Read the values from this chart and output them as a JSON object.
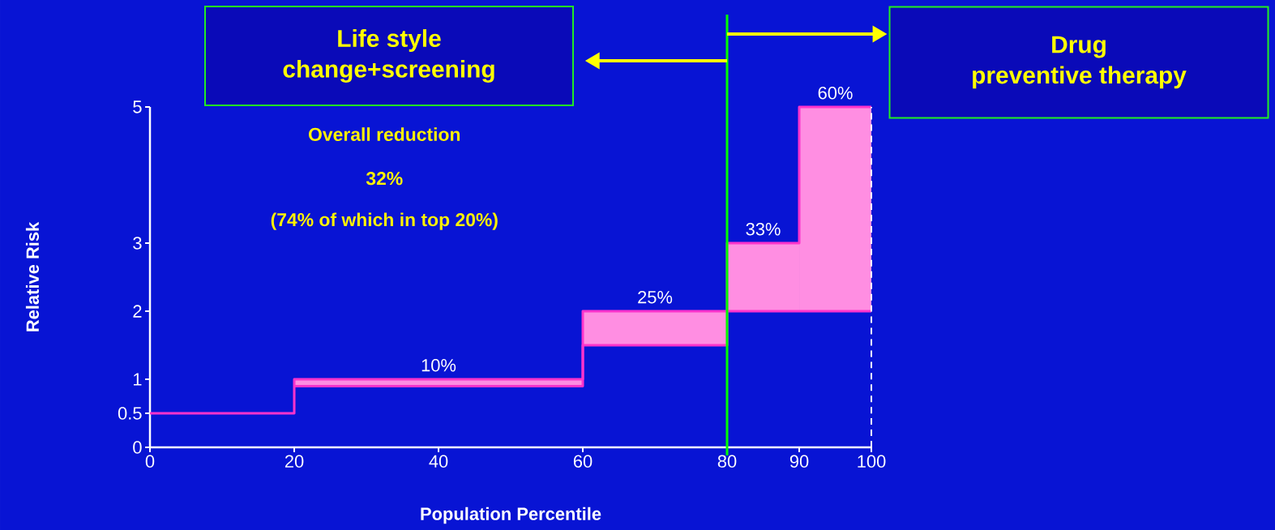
{
  "chart_data": {
    "type": "step",
    "xlabel": "Population Percentile",
    "ylabel": "Relative Risk",
    "x": [
      0,
      20,
      60,
      80,
      90,
      100
    ],
    "series": [
      {
        "color": "#ff33cc",
        "values": [
          0.5,
          1,
          2,
          3,
          5,
          5
        ],
        "lower": [
          null,
          0.9,
          1.5,
          2,
          2,
          2
        ],
        "upper": [
          null,
          1,
          2,
          3,
          5,
          5
        ]
      },
      {
        "color": "#ff33cc",
        "values": [
          null,
          0.9,
          1.5,
          2,
          2,
          2
        ]
      }
    ],
    "xlim": [
      0,
      100
    ],
    "xticks": [
      0,
      20,
      40,
      60,
      80,
      90,
      100
    ],
    "ylim": [
      0,
      5
    ],
    "yticks": [
      0,
      0.5,
      1,
      2,
      3,
      5
    ],
    "ref_lines": [
      {
        "axis": "x",
        "value": 80,
        "color": "#00ff00",
        "line_style": "solid"
      },
      {
        "axis": "x",
        "value": 100,
        "color": "#ffffff",
        "line_style": "dashed"
      }
    ],
    "annotations": [
      "Life style",
      "change+screening",
      "Drug",
      "preventive therapy",
      "Overall reduction",
      "32%",
      "(74% of which in top 20%)",
      "10%",
      "25%",
      "33%",
      "60%"
    ],
    "grid": false,
    "marker": "none"
  }
}
